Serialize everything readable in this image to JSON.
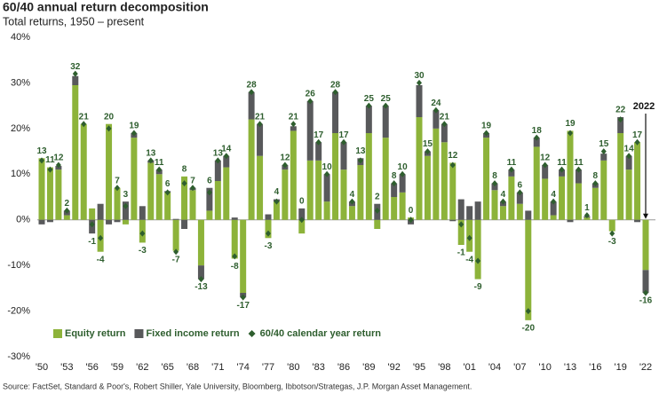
{
  "chart_data": {
    "type": "bar",
    "title": "60/40 annual return decomposition",
    "subtitle": "Total returns, 1950 – present",
    "source": "Source: FactSet, Standard & Poor's, Robert Shiller, Yale University, Bloomberg, Ibbotson/Strategas, J.P. Morgan Asset Management.",
    "annotations": [
      "2022"
    ],
    "categories": [
      "'50",
      null,
      null,
      "'53",
      null,
      null,
      "'56",
      null,
      null,
      "'59",
      null,
      null,
      "'62",
      null,
      null,
      "'65",
      null,
      null,
      "'68",
      null,
      null,
      "'71",
      null,
      null,
      "'74",
      null,
      null,
      "'77",
      null,
      null,
      "'80",
      null,
      null,
      "'83",
      null,
      null,
      "'86",
      null,
      null,
      "'89",
      null,
      null,
      "'92",
      null,
      null,
      "'95",
      null,
      null,
      "'98",
      null,
      null,
      "'01",
      null,
      null,
      "'04",
      null,
      null,
      "'07",
      null,
      null,
      "'10",
      null,
      null,
      "'13",
      null,
      null,
      "'16",
      null,
      null,
      "'19",
      null,
      null,
      "'22"
    ],
    "series": [
      {
        "name": "Equity return",
        "color": "#8db33a",
        "stack": true,
        "values": [
          13.5,
          11.5,
          11,
          1,
          29.5,
          21,
          2.5,
          -7,
          21,
          7,
          -1,
          18,
          -5,
          12.5,
          10,
          6,
          -6.8,
          9.5,
          6.5,
          -10,
          2,
          8.5,
          11.5,
          -8.5,
          -16,
          22,
          14,
          -4,
          4,
          11,
          19.5,
          -3,
          13,
          13,
          4,
          19,
          11,
          3,
          12,
          19,
          -2,
          18,
          5,
          6,
          0.5,
          22.5,
          14,
          20,
          17,
          12.5,
          -5.5,
          -7,
          -13,
          18,
          6.5,
          3,
          9.5,
          3.5,
          -22,
          16,
          9,
          1,
          9.5,
          19.5,
          8,
          0.5,
          7,
          13,
          -2.5,
          19,
          11,
          17,
          -11
        ]
      },
      {
        "name": "Fixed income return",
        "color": "#58595b",
        "stack": true,
        "values": [
          -1,
          -0.5,
          0.8,
          1,
          2,
          0,
          -3,
          3.5,
          -1,
          -0.5,
          4,
          1,
          3,
          0.5,
          1,
          0.3,
          0.2,
          -2,
          0.5,
          -3,
          5,
          4.5,
          2.5,
          0.5,
          -1,
          6,
          7,
          1.2,
          0.5,
          1,
          1,
          2.5,
          13,
          4,
          6,
          9,
          6,
          1,
          1.5,
          6,
          3.5,
          7,
          3,
          4,
          -1,
          7,
          1,
          4,
          4,
          -0.3,
          4.5,
          3,
          4,
          1,
          1.5,
          1,
          1.5,
          2.5,
          2,
          2,
          3,
          3,
          1.5,
          -0.5,
          3,
          0.3,
          1,
          1.5,
          0,
          3.5,
          3,
          -0.5,
          -5
        ]
      },
      {
        "name": "60/40 calendar year return",
        "color": "#2e5e2e",
        "marker": "diamond",
        "values": [
          13,
          11,
          12,
          2,
          32,
          21,
          -1,
          -4,
          20,
          7,
          3,
          19,
          -3,
          13,
          11,
          6,
          -7,
          8,
          7,
          -13,
          6,
          13,
          14,
          -8,
          -17,
          28,
          21,
          -3,
          4,
          12,
          21,
          0,
          26,
          17,
          10,
          28,
          17,
          4,
          13,
          25,
          2,
          25,
          8,
          10,
          0,
          30,
          15,
          24,
          21,
          12,
          -1,
          -4,
          -9,
          19,
          8,
          4,
          11,
          6,
          -20,
          18,
          12,
          4,
          11,
          19,
          11,
          1,
          8,
          15,
          -3,
          22,
          14,
          17,
          -16
        ]
      }
    ],
    "ylim": [
      -30,
      40
    ],
    "yticks": [
      {
        "value": -30,
        "label": "-30%"
      },
      {
        "value": -20,
        "label": "-20%"
      },
      {
        "value": -10,
        "label": "-10%"
      },
      {
        "value": 0,
        "label": "0%"
      },
      {
        "value": 10,
        "label": "10%"
      },
      {
        "value": 20,
        "label": "20%"
      },
      {
        "value": 30,
        "label": "30%"
      },
      {
        "value": 40,
        "label": "40%"
      }
    ],
    "legend": "lower left"
  }
}
